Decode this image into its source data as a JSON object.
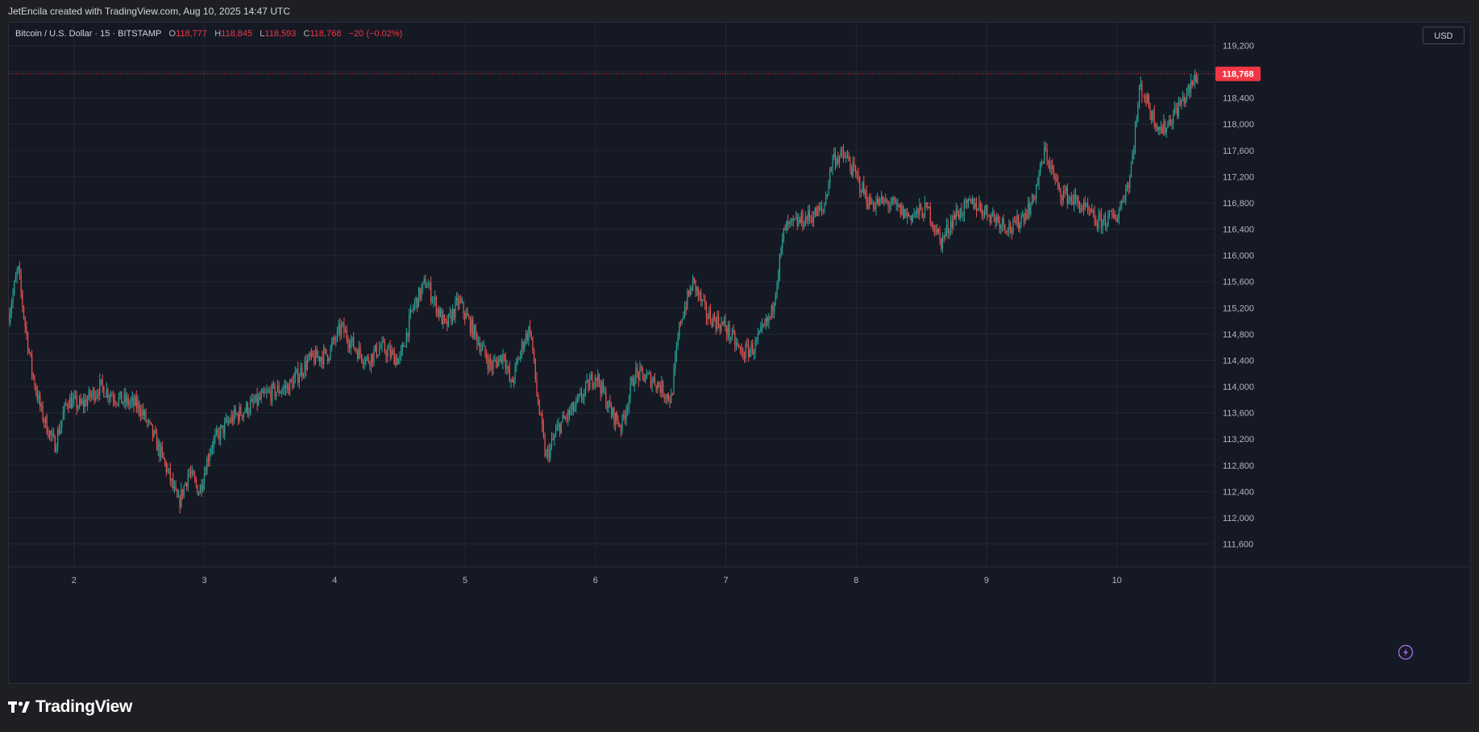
{
  "header": {
    "credit": "JetEncila created with TradingView.com, Aug 10, 2025 14:47 UTC"
  },
  "legend": {
    "symbol": "Bitcoin / U.S. Dollar · 15 · BITSTAMP",
    "open_label": "O",
    "open": "118,777",
    "high_label": "H",
    "high": "118,845",
    "low_label": "L",
    "low": "118,593",
    "close_label": "C",
    "close": "118,768",
    "change": "−20 (−0.02%)"
  },
  "currency_button": "USD",
  "footer": {
    "brand": "TradingView"
  },
  "icons": {
    "logo": "tradingview-logo-icon",
    "assistant": "lightning-icon"
  },
  "colors": {
    "up": "#26a69a",
    "down": "#ef5350",
    "price_tag": "#f23645",
    "background": "#151924",
    "grid": "#232732"
  },
  "chart_data": {
    "type": "candlestick",
    "title": "Bitcoin / U.S. Dollar · 15 · BITSTAMP",
    "xlabel": "",
    "ylabel": "",
    "x_ticks": [
      "2",
      "3",
      "4",
      "5",
      "6",
      "7",
      "8",
      "9",
      "10"
    ],
    "y_ticks": [
      111600,
      112000,
      112400,
      112800,
      113200,
      113600,
      114000,
      114400,
      114800,
      115200,
      115600,
      116000,
      116400,
      116800,
      117200,
      117600,
      118000,
      118400,
      118800,
      119200
    ],
    "y_tick_labels": [
      "111,600",
      "112,000",
      "112,400",
      "112,800",
      "113,200",
      "113,600",
      "114,000",
      "114,400",
      "114,800",
      "115,200",
      "115,600",
      "116,000",
      "116,400",
      "116,800",
      "117,200",
      "117,600",
      "118,000",
      "118,400",
      "118,800",
      "119,200"
    ],
    "ylim": [
      111250,
      119550
    ],
    "xlim_days": [
      1.5,
      10.75
    ],
    "grid": true,
    "last_price": 118768,
    "last_price_label": "118,768",
    "price_path": [
      [
        1.5,
        115100
      ],
      [
        1.57,
        115800
      ],
      [
        1.62,
        115000
      ],
      [
        1.68,
        114200
      ],
      [
        1.75,
        113600
      ],
      [
        1.85,
        113100
      ],
      [
        1.95,
        113800
      ],
      [
        2.05,
        113700
      ],
      [
        2.2,
        114000
      ],
      [
        2.35,
        113800
      ],
      [
        2.5,
        113700
      ],
      [
        2.62,
        113200
      ],
      [
        2.72,
        112700
      ],
      [
        2.8,
        112200
      ],
      [
        2.88,
        112700
      ],
      [
        2.96,
        112400
      ],
      [
        3.05,
        113100
      ],
      [
        3.2,
        113500
      ],
      [
        3.35,
        113700
      ],
      [
        3.5,
        113900
      ],
      [
        3.65,
        114000
      ],
      [
        3.8,
        114400
      ],
      [
        3.95,
        114500
      ],
      [
        4.05,
        114900
      ],
      [
        4.15,
        114600
      ],
      [
        4.25,
        114400
      ],
      [
        4.35,
        114600
      ],
      [
        4.5,
        114400
      ],
      [
        4.6,
        115200
      ],
      [
        4.7,
        115600
      ],
      [
        4.85,
        114900
      ],
      [
        4.95,
        115300
      ],
      [
        5.1,
        114700
      ],
      [
        5.2,
        114300
      ],
      [
        5.3,
        114500
      ],
      [
        5.35,
        114000
      ],
      [
        5.45,
        114700
      ],
      [
        5.5,
        114900
      ],
      [
        5.55,
        113900
      ],
      [
        5.62,
        112900
      ],
      [
        5.72,
        113400
      ],
      [
        5.85,
        113700
      ],
      [
        6.0,
        114200
      ],
      [
        6.12,
        113600
      ],
      [
        6.2,
        113400
      ],
      [
        6.3,
        114200
      ],
      [
        6.45,
        114100
      ],
      [
        6.58,
        113800
      ],
      [
        6.65,
        115000
      ],
      [
        6.75,
        115600
      ],
      [
        6.85,
        115100
      ],
      [
        7.0,
        114900
      ],
      [
        7.12,
        114500
      ],
      [
        7.22,
        114600
      ],
      [
        7.35,
        115100
      ],
      [
        7.45,
        116400
      ],
      [
        7.55,
        116500
      ],
      [
        7.65,
        116600
      ],
      [
        7.75,
        116700
      ],
      [
        7.82,
        117500
      ],
      [
        7.92,
        117500
      ],
      [
        8.0,
        117200
      ],
      [
        8.1,
        116800
      ],
      [
        8.25,
        116800
      ],
      [
        8.4,
        116600
      ],
      [
        8.55,
        116700
      ],
      [
        8.65,
        116200
      ],
      [
        8.75,
        116600
      ],
      [
        8.9,
        116800
      ],
      [
        9.05,
        116600
      ],
      [
        9.2,
        116400
      ],
      [
        9.35,
        116800
      ],
      [
        9.45,
        117600
      ],
      [
        9.55,
        117000
      ],
      [
        9.7,
        116800
      ],
      [
        9.85,
        116500
      ],
      [
        10.0,
        116600
      ],
      [
        10.1,
        117200
      ],
      [
        10.18,
        118600
      ],
      [
        10.28,
        118100
      ],
      [
        10.35,
        117900
      ],
      [
        10.45,
        118200
      ],
      [
        10.55,
        118500
      ],
      [
        10.62,
        118768
      ]
    ]
  }
}
